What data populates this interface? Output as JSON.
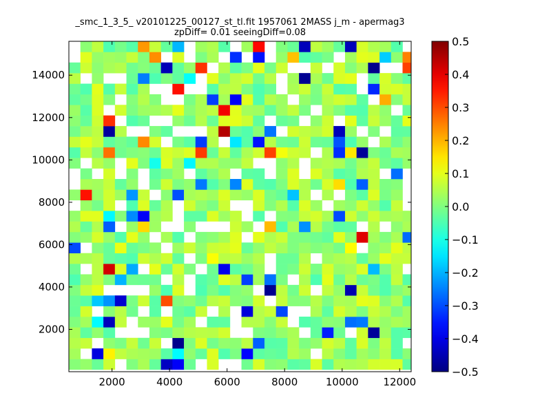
{
  "chart_data": {
    "type": "heatmap",
    "title": [
      "_smc_1_3_5_ v20101225_00127_st_tl.fit 1957061 2MASS j_m - apermag3",
      "zpDiff= 0.01 seeingDiff=0.08"
    ],
    "xlim": [
      500,
      12400
    ],
    "ylim": [
      0,
      15600
    ],
    "x_ticks": [
      2000,
      4000,
      6000,
      8000,
      10000,
      12000
    ],
    "y_ticks": [
      2000,
      4000,
      6000,
      8000,
      10000,
      12000,
      14000
    ],
    "x_tick_labels": [
      "2000",
      "4000",
      "6000",
      "8000",
      "10000",
      "12000"
    ],
    "y_tick_labels": [
      "2000",
      "4000",
      "6000",
      "8000",
      "10000",
      "12000",
      "14000"
    ],
    "colorbar": {
      "colormap": "jet",
      "range": [
        -0.5,
        0.5
      ],
      "ticks": [
        0.5,
        0.4,
        0.3,
        0.2,
        0.1,
        0.0,
        -0.1,
        -0.2,
        -0.3,
        -0.4,
        -0.5
      ],
      "tick_labels": [
        "0.5",
        "0.4",
        "0.3",
        "0.2",
        "0.1",
        "0.0",
        "−0.1",
        "−0.2",
        "−0.3",
        "−0.4",
        "−0.5"
      ]
    },
    "grid": false,
    "legend": "none",
    "bin_size": [
      400,
      500
    ],
    "cell_values_approx": {
      "typical_range": [
        -0.05,
        0.1
      ],
      "max": 0.5,
      "min": -0.5
    }
  }
}
